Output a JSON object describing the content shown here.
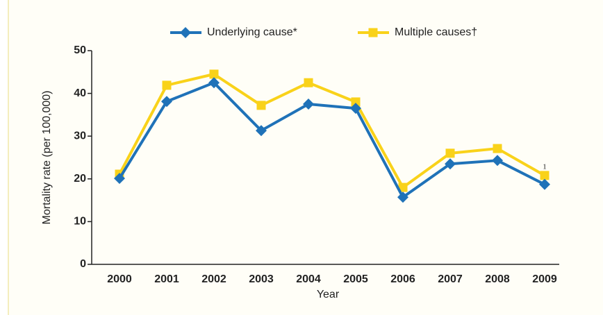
{
  "chart_data": {
    "type": "line",
    "xlabel": "Year",
    "ylabel": "Mortality rate (per 100,000)",
    "categories": [
      "2000",
      "2001",
      "2002",
      "2003",
      "2004",
      "2005",
      "2006",
      "2007",
      "2008",
      "2009"
    ],
    "series": [
      {
        "name": "Underlying cause*",
        "color": "#1f72b8",
        "marker": "diamond",
        "values": [
          20.1,
          38.1,
          42.5,
          31.3,
          37.5,
          36.5,
          15.7,
          23.5,
          24.3,
          18.7
        ]
      },
      {
        "name": "Multiple causes†",
        "color": "#f9d21a",
        "marker": "square",
        "values": [
          21.1,
          41.9,
          44.5,
          37.2,
          42.5,
          38,
          18,
          26,
          27.1,
          20.8
        ]
      }
    ],
    "annotations": [
      {
        "text": "1",
        "category": 9
      }
    ],
    "ylim": [
      0,
      50
    ],
    "yticks": [
      0,
      10,
      20,
      30,
      40,
      50
    ],
    "grid": false
  }
}
